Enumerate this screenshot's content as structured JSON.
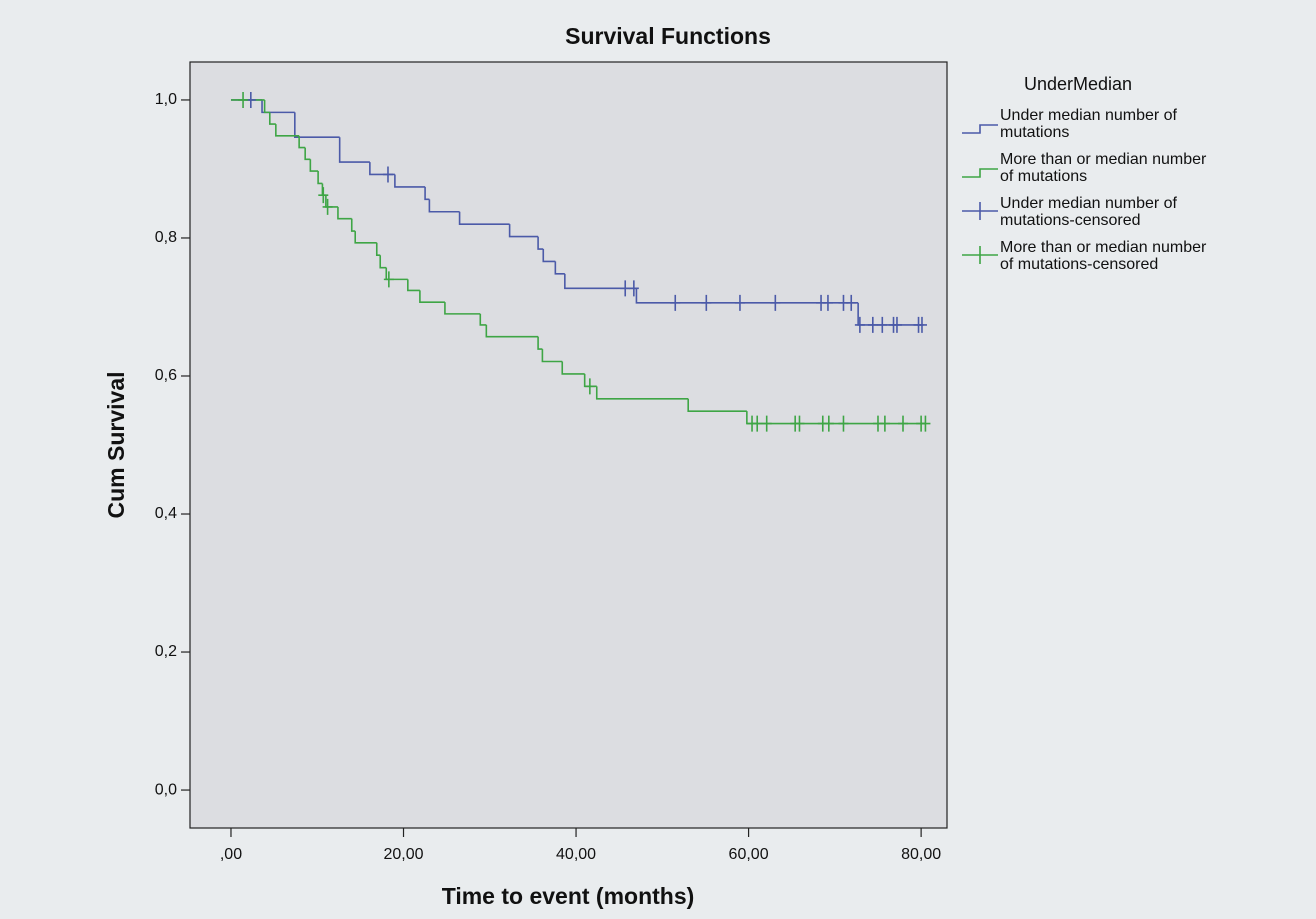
{
  "chart_data": {
    "type": "survival",
    "title": "Survival Functions",
    "x_label": "Time to event (months)",
    "y_label": "Cum Survival",
    "legend_title": "UnderMedian",
    "legend": "right",
    "xlim": [
      -4.75,
      83
    ],
    "ylim": [
      -0.055,
      1.055
    ],
    "xticks": [
      {
        "value": 0,
        "label": ",00"
      },
      {
        "value": 20,
        "label": "20,00"
      },
      {
        "value": 40,
        "label": "40,00"
      },
      {
        "value": 60,
        "label": "60,00"
      },
      {
        "value": 80,
        "label": "80,00"
      }
    ],
    "yticks": [
      {
        "value": 0,
        "label": "0,0"
      },
      {
        "value": 0.2,
        "label": "0,2"
      },
      {
        "value": 0.4,
        "label": "0,4"
      },
      {
        "value": 0.6,
        "label": "0,6"
      },
      {
        "value": 0.8,
        "label": "0,8"
      },
      {
        "value": 1,
        "label": "1,0"
      }
    ],
    "series": [
      {
        "name": "Under median number of mutations",
        "color": "#4b5aa8",
        "style": "step",
        "x": [
          0,
          3.6,
          7.4,
          12.6,
          16.1,
          19,
          22.5,
          23,
          26.5,
          32.3,
          35.6,
          36.2,
          37.6,
          38.7,
          47,
          72.7,
          80.2
        ],
        "values": [
          1,
          0.982,
          0.946,
          0.91,
          0.892,
          0.874,
          0.856,
          0.838,
          0.82,
          0.802,
          0.784,
          0.766,
          0.748,
          0.727,
          0.706,
          0.674,
          0.674
        ]
      },
      {
        "name": "More than or median number of mutations",
        "color": "#3ea545",
        "style": "step",
        "x": [
          0,
          3.9,
          4.5,
          5.2,
          7.9,
          8.6,
          9.2,
          10.1,
          10.6,
          11,
          12.4,
          14,
          14.4,
          16.9,
          17.3,
          18,
          20.5,
          21.9,
          24.8,
          28.9,
          29.6,
          35.6,
          36.1,
          38.4,
          41,
          42.4,
          53,
          59.8,
          80.5
        ],
        "values": [
          1,
          0.982,
          0.965,
          0.948,
          0.931,
          0.914,
          0.897,
          0.879,
          0.862,
          0.845,
          0.828,
          0.81,
          0.793,
          0.775,
          0.757,
          0.74,
          0.724,
          0.707,
          0.69,
          0.674,
          0.657,
          0.639,
          0.621,
          0.603,
          0.585,
          0.567,
          0.549,
          0.531,
          0.531
        ]
      },
      {
        "name": "Under median number of mutations-censored",
        "color": "#4b5aa8",
        "style": "censor",
        "x": [
          2.3,
          18.2,
          45.7,
          46.7,
          51.5,
          55.1,
          59,
          63.1,
          68.4,
          69.2,
          71,
          71.9,
          72.9,
          74.4,
          75.5,
          76.8,
          77.2,
          79.7,
          80.1
        ],
        "values": [
          1,
          0.892,
          0.727,
          0.727,
          0.706,
          0.706,
          0.706,
          0.706,
          0.706,
          0.706,
          0.706,
          0.706,
          0.674,
          0.674,
          0.674,
          0.674,
          0.674,
          0.674,
          0.674
        ]
      },
      {
        "name": "More than or median number of mutations-censored",
        "color": "#3ea545",
        "style": "censor",
        "x": [
          1.4,
          10.7,
          11.2,
          18.3,
          41.6,
          60.4,
          61,
          62.1,
          65.4,
          65.9,
          68.6,
          69.3,
          71,
          75,
          75.8,
          77.9,
          80,
          80.5
        ],
        "values": [
          1,
          0.862,
          0.845,
          0.74,
          0.585,
          0.531,
          0.531,
          0.531,
          0.531,
          0.531,
          0.531,
          0.531,
          0.531,
          0.531,
          0.531,
          0.531,
          0.531,
          0.531
        ]
      }
    ]
  }
}
